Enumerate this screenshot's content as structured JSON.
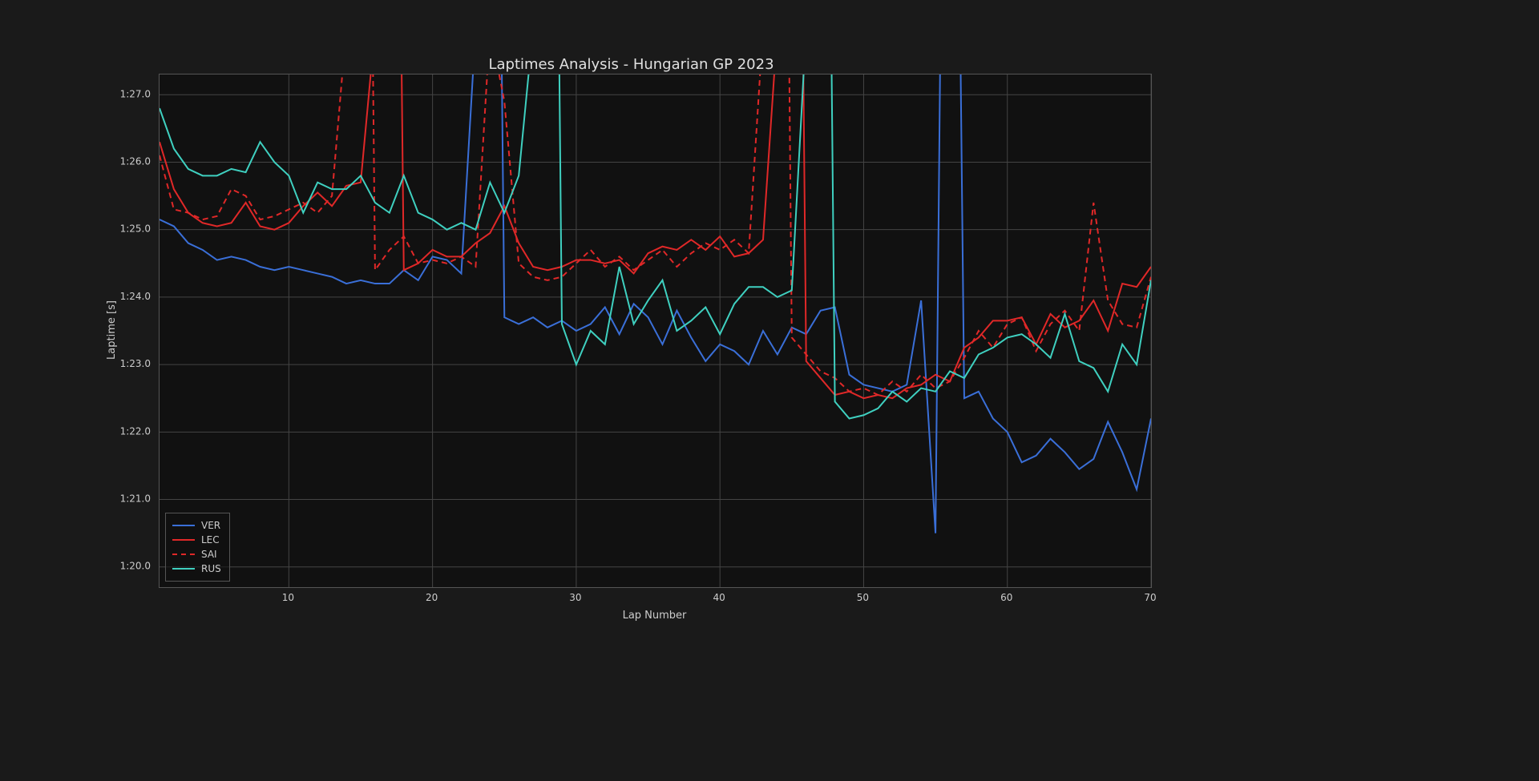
{
  "chart": {
    "type": "line",
    "title": "Laptimes Analysis - Hungarian GP 2023",
    "title_fontsize": 18,
    "title_color": "#e0e0e0",
    "xlabel": "Lap Number",
    "ylabel": "Laptime [s]",
    "label_fontsize": 13,
    "label_color": "#cccccc",
    "tick_fontsize": 12,
    "tick_color": "#cccccc",
    "background_color": "#1a1a1a",
    "plot_background_color": "#111111",
    "grid_color": "#444444",
    "axis_border_color": "#555555",
    "xlim": [
      1,
      70
    ],
    "ylim": [
      79.7,
      87.3
    ],
    "xticks": [
      10,
      20,
      30,
      40,
      50,
      60,
      70
    ],
    "yticks": [
      80,
      81,
      82,
      83,
      84,
      85,
      86,
      87
    ],
    "ytick_labels": [
      "1:20.0",
      "1:21.0",
      "1:22.0",
      "1:23.0",
      "1:24.0",
      "1:25.0",
      "1:26.0",
      "1:27.0"
    ],
    "line_width": 2,
    "legend_border_color": "#555555",
    "legend_text_color": "#cccccc",
    "legend_position": "lower-left",
    "series": [
      {
        "name": "VER",
        "color": "#3a6fd8",
        "dash": "solid",
        "x": [
          1,
          2,
          3,
          4,
          5,
          6,
          7,
          8,
          9,
          10,
          11,
          12,
          13,
          14,
          15,
          16,
          17,
          18,
          19,
          20,
          21,
          22,
          23,
          24,
          25,
          26,
          27,
          28,
          29,
          30,
          31,
          32,
          33,
          34,
          35,
          36,
          37,
          38,
          39,
          40,
          41,
          42,
          43,
          44,
          45,
          46,
          47,
          48,
          49,
          50,
          51,
          52,
          53,
          54,
          55,
          56,
          57,
          58,
          59,
          60,
          61,
          62,
          63,
          64,
          65,
          66,
          67,
          68,
          69,
          70
        ],
        "y": [
          85.15,
          85.05,
          84.8,
          84.7,
          84.55,
          84.6,
          84.55,
          84.45,
          84.4,
          84.45,
          84.4,
          84.35,
          84.3,
          84.2,
          84.25,
          84.2,
          84.2,
          84.4,
          84.25,
          84.6,
          84.55,
          84.35,
          88.0,
          104.0,
          83.7,
          83.6,
          83.7,
          83.55,
          83.65,
          83.5,
          83.6,
          83.85,
          83.45,
          83.9,
          83.7,
          83.3,
          83.8,
          83.4,
          83.05,
          83.3,
          83.2,
          83.0,
          83.5,
          83.15,
          83.55,
          83.45,
          83.8,
          83.85,
          82.85,
          82.7,
          82.65,
          82.6,
          82.7,
          83.95,
          80.5,
          102.0,
          82.5,
          82.6,
          82.2,
          82.0,
          81.55,
          81.65,
          81.9,
          81.7,
          81.45,
          81.6,
          82.15,
          81.7,
          81.15,
          82.2
        ]
      },
      {
        "name": "LEC",
        "color": "#e02828",
        "dash": "solid",
        "x": [
          1,
          2,
          3,
          4,
          5,
          6,
          7,
          8,
          9,
          10,
          11,
          12,
          13,
          14,
          15,
          16,
          17,
          18,
          19,
          20,
          21,
          22,
          23,
          24,
          25,
          26,
          27,
          28,
          29,
          30,
          31,
          32,
          33,
          34,
          35,
          36,
          37,
          38,
          39,
          40,
          41,
          42,
          43,
          44,
          45,
          46,
          47,
          48,
          49,
          50,
          51,
          52,
          53,
          54,
          55,
          56,
          57,
          58,
          59,
          60,
          61,
          62,
          63,
          64,
          65,
          66,
          67,
          68,
          69,
          70
        ],
        "y": [
          86.3,
          85.6,
          85.25,
          85.1,
          85.05,
          85.1,
          85.4,
          85.05,
          85.0,
          85.1,
          85.35,
          85.55,
          85.35,
          85.65,
          85.7,
          88.0,
          104.0,
          84.4,
          84.5,
          84.7,
          84.6,
          84.6,
          84.8,
          84.95,
          85.35,
          84.8,
          84.45,
          84.4,
          84.45,
          84.55,
          84.55,
          84.5,
          84.55,
          84.35,
          84.65,
          84.75,
          84.7,
          84.85,
          84.7,
          84.9,
          84.6,
          84.65,
          84.85,
          88.0,
          105.0,
          83.05,
          82.8,
          82.55,
          82.6,
          82.5,
          82.55,
          82.5,
          82.65,
          82.7,
          82.85,
          82.75,
          83.25,
          83.4,
          83.65,
          83.65,
          83.7,
          83.3,
          83.75,
          83.55,
          83.65,
          83.95,
          83.5,
          84.2,
          84.15,
          84.45
        ]
      },
      {
        "name": "SAI",
        "color": "#e02828",
        "dash": "dashed",
        "x": [
          1,
          2,
          3,
          4,
          5,
          6,
          7,
          8,
          9,
          10,
          11,
          12,
          13,
          14,
          15,
          16,
          17,
          18,
          19,
          20,
          21,
          22,
          23,
          24,
          25,
          26,
          27,
          28,
          29,
          30,
          31,
          32,
          33,
          34,
          35,
          36,
          37,
          38,
          39,
          40,
          41,
          42,
          43,
          44,
          45,
          46,
          47,
          48,
          49,
          50,
          51,
          52,
          53,
          54,
          55,
          56,
          57,
          58,
          59,
          60,
          61,
          62,
          63,
          64,
          65,
          66,
          67,
          68,
          69,
          70
        ],
        "y": [
          86.1,
          85.3,
          85.25,
          85.15,
          85.2,
          85.6,
          85.5,
          85.15,
          85.2,
          85.3,
          85.4,
          85.25,
          85.5,
          88.0,
          105.0,
          84.4,
          84.7,
          84.9,
          84.5,
          84.55,
          84.5,
          84.6,
          84.45,
          88.0,
          86.9,
          84.5,
          84.3,
          84.25,
          84.3,
          84.5,
          84.7,
          84.45,
          84.6,
          84.4,
          84.55,
          84.7,
          84.45,
          84.65,
          84.8,
          84.7,
          84.85,
          84.65,
          88.0,
          106.0,
          83.4,
          83.15,
          82.9,
          82.8,
          82.6,
          82.65,
          82.55,
          82.75,
          82.6,
          82.85,
          82.65,
          82.75,
          83.1,
          83.5,
          83.25,
          83.6,
          83.7,
          83.2,
          83.6,
          83.8,
          83.5,
          85.4,
          83.95,
          83.6,
          83.55,
          84.3
        ]
      },
      {
        "name": "RUS",
        "color": "#3fd0c0",
        "dash": "solid",
        "x": [
          1,
          2,
          3,
          4,
          5,
          6,
          7,
          8,
          9,
          10,
          11,
          12,
          13,
          14,
          15,
          16,
          17,
          18,
          19,
          20,
          21,
          22,
          23,
          24,
          25,
          26,
          27,
          28,
          29,
          30,
          31,
          32,
          33,
          34,
          35,
          36,
          37,
          38,
          39,
          40,
          41,
          42,
          43,
          44,
          45,
          46,
          47,
          48,
          49,
          50,
          51,
          52,
          53,
          54,
          55,
          56,
          57,
          58,
          59,
          60,
          61,
          62,
          63,
          64,
          65,
          66,
          67,
          68,
          69,
          70
        ],
        "y": [
          86.8,
          86.2,
          85.9,
          85.8,
          85.8,
          85.9,
          85.85,
          86.3,
          86.0,
          85.8,
          85.25,
          85.7,
          85.6,
          85.6,
          85.8,
          85.4,
          85.25,
          85.8,
          85.25,
          85.15,
          85.0,
          85.1,
          85.0,
          85.7,
          85.25,
          85.8,
          88.0,
          105.0,
          83.6,
          83.0,
          83.5,
          83.3,
          84.45,
          83.6,
          83.95,
          84.25,
          83.5,
          83.65,
          83.85,
          83.45,
          83.9,
          84.15,
          84.15,
          84.0,
          84.1,
          88.0,
          104.0,
          82.45,
          82.2,
          82.25,
          82.35,
          82.6,
          82.45,
          82.65,
          82.6,
          82.9,
          82.8,
          83.15,
          83.25,
          83.4,
          83.45,
          83.3,
          83.1,
          83.75,
          83.05,
          82.95,
          82.6,
          83.3,
          83.0,
          84.25
        ]
      }
    ]
  }
}
